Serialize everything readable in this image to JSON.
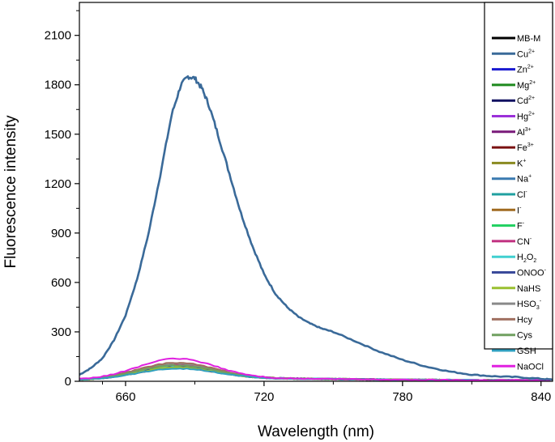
{
  "chart_data": {
    "type": "line",
    "xlabel": "Wavelength (nm)",
    "ylabel": "Fluorescence intensity",
    "xlim": [
      640,
      845
    ],
    "ylim": [
      0,
      2300
    ],
    "xticks": [
      660,
      720,
      780,
      840
    ],
    "yticks": [
      0,
      300,
      600,
      900,
      1200,
      1500,
      1800,
      2100
    ],
    "grid": false,
    "legend_position": "top-right",
    "series": [
      {
        "name": "MB-M",
        "base": "MB-M",
        "sup": "",
        "sub": "",
        "color": "#000000",
        "peak": 70
      },
      {
        "name": "Cu2+",
        "base": "Cu",
        "sup": "2+",
        "sub": "",
        "color": "#3a6a99",
        "x": [
          640,
          645,
          650,
          655,
          660,
          665,
          670,
          675,
          680,
          684,
          687,
          690,
          693,
          696,
          700,
          705,
          710,
          715,
          720,
          725,
          730,
          735,
          740,
          745,
          750,
          760,
          770,
          780,
          790,
          800,
          810,
          820,
          830,
          840,
          845
        ],
        "y": [
          40,
          80,
          140,
          250,
          400,
          620,
          900,
          1250,
          1620,
          1800,
          1850,
          1840,
          1780,
          1680,
          1500,
          1260,
          1020,
          820,
          650,
          530,
          450,
          390,
          350,
          320,
          300,
          240,
          180,
          130,
          90,
          60,
          40,
          30,
          25,
          15,
          10
        ]
      },
      {
        "name": "Zn2+",
        "base": "Zn",
        "sup": "2+",
        "sub": "",
        "color": "#1a1ad0",
        "peak": 75
      },
      {
        "name": "Mg2+",
        "base": "Mg",
        "sup": "2+",
        "sub": "",
        "color": "#1e8a1e",
        "peak": 72
      },
      {
        "name": "Cd2+",
        "base": "Cd",
        "sup": "2+",
        "sub": "",
        "color": "#101060",
        "peak": 70
      },
      {
        "name": "Hg2+",
        "base": "Hg",
        "sup": "2+",
        "sub": "",
        "color": "#9b30d9",
        "peak": 78
      },
      {
        "name": "Al3+",
        "base": "Al",
        "sup": "3+",
        "sub": "",
        "color": "#7a1a7a",
        "peak": 74
      },
      {
        "name": "Fe3+",
        "base": "Fe",
        "sup": "3+",
        "sub": "",
        "color": "#7a1010",
        "peak": 68
      },
      {
        "name": "K+",
        "base": "K",
        "sup": "+",
        "sub": "",
        "color": "#8a8a20",
        "peak": 73
      },
      {
        "name": "Na+",
        "base": "Na",
        "sup": "+",
        "sub": "",
        "color": "#3a7ab0",
        "peak": 76
      },
      {
        "name": "Cl-",
        "base": "Cl",
        "sup": "-",
        "sub": "",
        "color": "#20a0a0",
        "peak": 71
      },
      {
        "name": "I-",
        "base": "I",
        "sup": "-",
        "sub": "",
        "color": "#a06a20",
        "peak": 80
      },
      {
        "name": "F-",
        "base": "F",
        "sup": "-",
        "sub": "",
        "color": "#20d060",
        "peak": 74
      },
      {
        "name": "CN-",
        "base": "CN",
        "sup": "-",
        "sub": "",
        "color": "#c03080",
        "peak": 90
      },
      {
        "name": "H2O2",
        "base": "H",
        "sup": "",
        "sub": "2",
        "tail": "O",
        "tailsub": "2",
        "color": "#40d0d0",
        "peak": 77
      },
      {
        "name": "ONOO-",
        "base": "ONOO",
        "sup": "-",
        "sub": "",
        "color": "#3a4a9a",
        "peak": 75
      },
      {
        "name": "NaHS",
        "base": "NaHS",
        "sup": "",
        "sub": "",
        "color": "#9ac030",
        "peak": 72
      },
      {
        "name": "HSO3-",
        "base": "HSO",
        "sup": "-",
        "sub": "3",
        "color": "#8a8a8a",
        "peak": 95
      },
      {
        "name": "Hcy",
        "base": "Hcy",
        "sup": "",
        "sub": "",
        "color": "#a07060",
        "peak": 100
      },
      {
        "name": "Cys",
        "base": "Cys",
        "sup": "",
        "sub": "",
        "color": "#70a060",
        "peak": 85
      },
      {
        "name": "GSH",
        "base": "GSH",
        "sup": "",
        "sub": "",
        "color": "#30a0c0",
        "peak": 65
      },
      {
        "name": "NaOCl",
        "base": "NaOCl",
        "sup": "",
        "sub": "",
        "color": "#e020e0",
        "peak": 125
      }
    ]
  }
}
